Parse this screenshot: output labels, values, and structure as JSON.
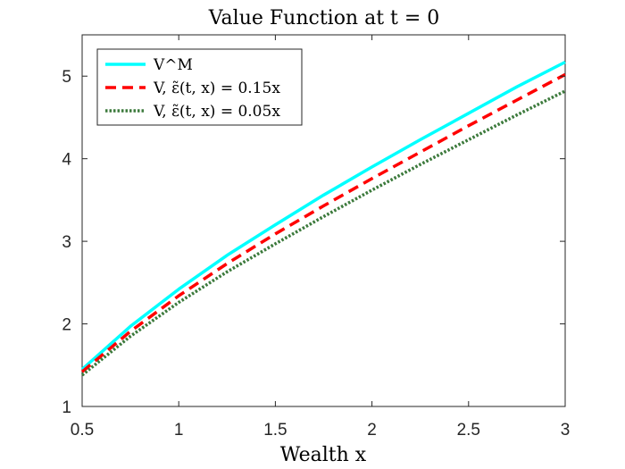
{
  "chart_data": {
    "type": "line",
    "title": "Value Function at t = 0",
    "xlabel": "Wealth x",
    "ylabel": "",
    "xlim": [
      0.5,
      3
    ],
    "ylim": [
      1,
      5.5
    ],
    "xticks": [
      0.5,
      1,
      1.5,
      2,
      2.5,
      3
    ],
    "yticks": [
      1,
      2,
      3,
      4,
      5
    ],
    "xtick_labels": [
      "0.5",
      "1",
      "1.5",
      "2",
      "2.5",
      "3"
    ],
    "ytick_labels": [
      "1",
      "2",
      "3",
      "4",
      "5"
    ],
    "grid": false,
    "legend": "top-left",
    "x": [
      0.5,
      0.75,
      1.0,
      1.25,
      1.5,
      1.75,
      2.0,
      2.25,
      2.5,
      2.75,
      3.0
    ],
    "series": [
      {
        "name": "V^M",
        "color": "#00FFFF",
        "style": "solid",
        "values": [
          1.45,
          1.97,
          2.42,
          2.83,
          3.2,
          3.56,
          3.9,
          4.23,
          4.55,
          4.87,
          5.17
        ]
      },
      {
        "name": "V, ε̃(t, x) = 0.15x",
        "color": "#FF0000",
        "style": "dashed",
        "values": [
          1.42,
          1.91,
          2.34,
          2.73,
          3.09,
          3.43,
          3.76,
          4.08,
          4.4,
          4.71,
          5.02
        ]
      },
      {
        "name": "V, ε̃(t, x) = 0.05x",
        "color": "#3C7A3C",
        "style": "dotted",
        "values": [
          1.38,
          1.85,
          2.26,
          2.63,
          2.97,
          3.3,
          3.62,
          3.93,
          4.23,
          4.53,
          4.82
        ]
      }
    ]
  }
}
